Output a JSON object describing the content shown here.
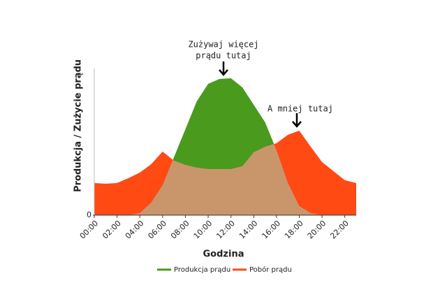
{
  "chart_data": {
    "type": "area",
    "x_label": "Godzina",
    "y_label": "Produkcja / Zużycie prądu",
    "annotations": [
      "Zużywaj więcej",
      "prądu tutaj",
      "A mniej tutaj"
    ],
    "x": [
      0,
      1,
      2,
      3,
      4,
      5,
      6,
      7,
      8,
      9,
      10,
      11,
      12,
      13,
      14,
      15,
      16,
      17,
      18,
      19,
      20,
      21,
      22,
      23
    ],
    "series": [
      {
        "name": "Produkcja prądu",
        "color": "#4a9a1e",
        "values": [
          0,
          0,
          0,
          0,
          1.5,
          9,
          21.5,
          41.5,
          61.5,
          81.5,
          94,
          97.5,
          98,
          91.5,
          79,
          66.5,
          46.5,
          23,
          6.5,
          1.5,
          0,
          0,
          0,
          0
        ]
      },
      {
        "name": "Pobór prądu",
        "color": "#ff4a14",
        "values": [
          23,
          22.5,
          23,
          26.5,
          30.5,
          36.5,
          45.5,
          39,
          36,
          34,
          33,
          33,
          33,
          35,
          45,
          49,
          51.5,
          57.5,
          60.5,
          49,
          38,
          31.5,
          25,
          23
        ]
      }
    ],
    "overlap_color": "#c9966b",
    "xlim": [
      0,
      23
    ],
    "ylim": [
      0,
      100
    ],
    "xticks": [
      {
        "value": 0,
        "label": "00:00"
      },
      {
        "value": 2,
        "label": "02:00"
      },
      {
        "value": 4,
        "label": "04:00"
      },
      {
        "value": 6,
        "label": "06:00"
      },
      {
        "value": 8,
        "label": "08:00"
      },
      {
        "value": 10,
        "label": "10:00"
      },
      {
        "value": 12,
        "label": "12:00"
      },
      {
        "value": 14,
        "label": "14:00"
      },
      {
        "value": 16,
        "label": "16:00"
      },
      {
        "value": 18,
        "label": "18:00"
      },
      {
        "value": 20,
        "label": "20:00"
      },
      {
        "value": 22,
        "label": "22:00"
      }
    ],
    "yticks": [
      0
    ]
  }
}
